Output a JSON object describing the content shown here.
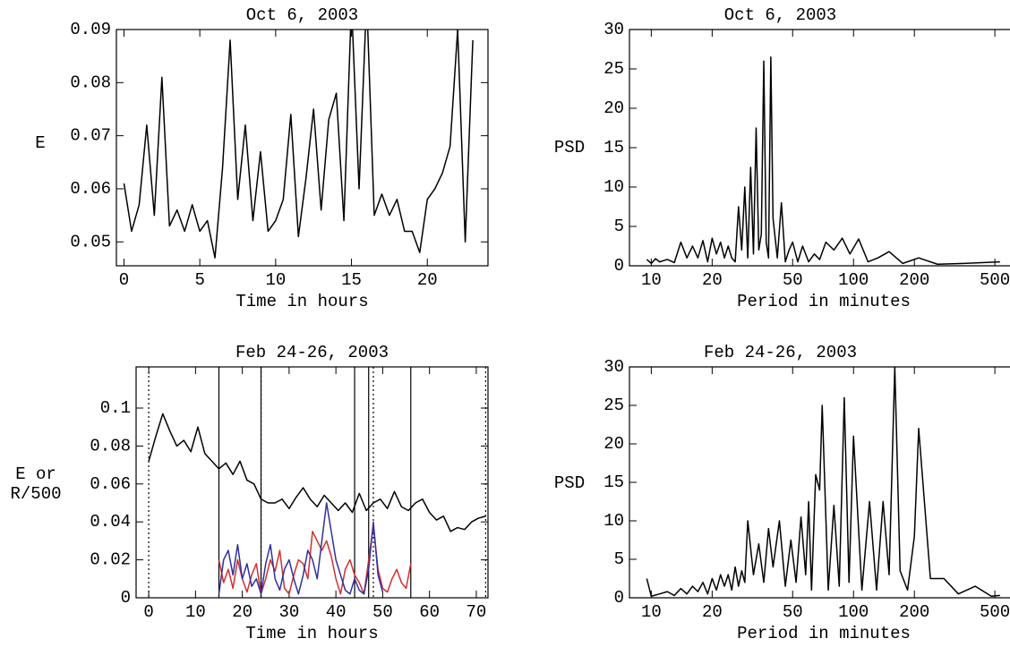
{
  "chart_data": [
    {
      "type": "line",
      "title": "Oct 6, 2003",
      "xlabel": "Time in hours",
      "ylabel": "E",
      "xlim": [
        -0.5,
        24
      ],
      "ylim": [
        0.0455,
        0.09
      ],
      "xticks": [
        0,
        5,
        10,
        15,
        20
      ],
      "yticks": [
        0.05,
        0.06,
        0.07,
        0.08,
        0.09
      ],
      "series": [
        {
          "color": "#000000",
          "x": [
            0,
            0.5,
            1,
            1.5,
            2,
            2.5,
            3,
            3.5,
            4,
            4.5,
            5,
            5.5,
            6,
            6.5,
            7,
            7.5,
            8,
            8.5,
            9,
            9.5,
            10,
            10.5,
            11,
            11.5,
            12,
            12.5,
            13,
            13.5,
            14,
            14.5,
            15,
            15.5,
            16,
            16.5,
            17,
            17.5,
            18,
            18.5,
            19,
            19.5,
            20,
            20.5,
            21,
            21.5,
            22,
            22.5,
            23
          ],
          "values": [
            0.061,
            0.052,
            0.057,
            0.072,
            0.055,
            0.081,
            0.053,
            0.056,
            0.052,
            0.057,
            0.052,
            0.054,
            0.047,
            0.064,
            0.088,
            0.058,
            0.072,
            0.054,
            0.067,
            0.052,
            0.054,
            0.058,
            0.074,
            0.051,
            0.062,
            0.075,
            0.056,
            0.073,
            0.078,
            0.054,
            0.095,
            0.06,
            0.096,
            0.055,
            0.059,
            0.055,
            0.058,
            0.052,
            0.052,
            0.048,
            0.058,
            0.06,
            0.063,
            0.068,
            0.09,
            0.05,
            0.088
          ]
        }
      ]
    },
    {
      "type": "line",
      "title": "Oct 6, 2003",
      "xlabel": "Period in minutes",
      "ylabel": "PSD",
      "xscale": "log",
      "xlim": [
        7.8,
        594
      ],
      "ylim": [
        0,
        30
      ],
      "xticks": [
        10,
        20,
        50,
        100,
        200,
        500
      ],
      "yticks": [
        0,
        5,
        10,
        15,
        20,
        25,
        30
      ],
      "series": [
        {
          "color": "#000000",
          "x": [
            9.5,
            10,
            10.5,
            11,
            12,
            13,
            14,
            15,
            16,
            17,
            18,
            19,
            20,
            21,
            22,
            23,
            24,
            25,
            26,
            27,
            28,
            29,
            30,
            31,
            32,
            33,
            34,
            35,
            36,
            37,
            38,
            39,
            40,
            42,
            44,
            46,
            48,
            50,
            53,
            56,
            60,
            64,
            68,
            73,
            80,
            88,
            96,
            106,
            118,
            132,
            150,
            175,
            210,
            260,
            350,
            530
          ],
          "values": [
            0.8,
            0.3,
            0.9,
            0.5,
            0.8,
            0.4,
            3,
            1,
            2.5,
            1,
            3.2,
            0.5,
            3.5,
            1.5,
            3,
            1,
            2.5,
            1,
            0.5,
            7.5,
            2,
            10,
            1,
            12.5,
            1.5,
            17.5,
            2,
            4,
            26,
            3,
            1,
            26.5,
            6,
            1,
            8,
            0.5,
            2,
            3,
            0.5,
            2.5,
            0.5,
            1.5,
            0.8,
            3,
            2,
            3.5,
            1.5,
            3.4,
            0.5,
            1,
            1.8,
            0.3,
            1,
            0.2,
            0.3,
            0.5
          ]
        }
      ]
    },
    {
      "type": "line",
      "title": "Feb 24-26, 2003",
      "xlabel": "Time in hours",
      "ylabel_lines": [
        "E or",
        "R/500"
      ],
      "xlim": [
        -2.7,
        72.5
      ],
      "ylim": [
        0,
        0.1217
      ],
      "xticks": [
        0,
        10,
        20,
        30,
        40,
        50,
        60,
        70
      ],
      "yticks": [
        0,
        0.02,
        0.04,
        0.06,
        0.08,
        0.1
      ],
      "vlines": [
        15,
        24,
        44,
        47,
        56
      ],
      "dotted_vlines": [
        0,
        24,
        48,
        72
      ],
      "series": [
        {
          "color": "#000000",
          "x": [
            0,
            1.5,
            3,
            4.5,
            6,
            7.5,
            9,
            10.5,
            12,
            13.5,
            15,
            16.5,
            18,
            19.5,
            21,
            22.5,
            24,
            25.5,
            27,
            28.5,
            30,
            31.5,
            33,
            34.5,
            36,
            37.5,
            39,
            40.5,
            42,
            43.5,
            45,
            46.5,
            48,
            49.5,
            51,
            52.5,
            54,
            55.5,
            57,
            58.5,
            60,
            61.5,
            63,
            64.5,
            66,
            67.5,
            69,
            70.5,
            72
          ],
          "values": [
            0.072,
            0.085,
            0.097,
            0.088,
            0.08,
            0.083,
            0.077,
            0.09,
            0.076,
            0.072,
            0.068,
            0.071,
            0.065,
            0.072,
            0.062,
            0.06,
            0.052,
            0.05,
            0.05,
            0.052,
            0.047,
            0.053,
            0.058,
            0.052,
            0.048,
            0.054,
            0.05,
            0.046,
            0.05,
            0.045,
            0.055,
            0.046,
            0.05,
            0.052,
            0.047,
            0.056,
            0.048,
            0.046,
            0.05,
            0.052,
            0.045,
            0.041,
            0.043,
            0.035,
            0.037,
            0.036,
            0.04,
            0.042,
            0.043
          ]
        },
        {
          "color": "#d03030",
          "x": [
            15,
            16,
            17,
            18,
            19,
            20,
            21,
            22,
            23,
            24,
            25,
            26,
            27,
            28,
            29,
            30,
            31,
            32,
            33,
            34,
            35,
            36,
            37,
            38,
            39,
            40,
            41,
            42,
            43,
            44,
            45,
            46,
            47,
            48,
            49,
            50,
            51,
            52,
            53,
            54,
            55,
            56
          ],
          "values": [
            0.02,
            0.008,
            0.015,
            0.005,
            0.02,
            0.01,
            0.003,
            0.012,
            0.018,
            0.002,
            0.01,
            0.02,
            0.014,
            0.025,
            0.005,
            0.002,
            0.012,
            0.02,
            0.018,
            0.01,
            0.035,
            0.03,
            0.025,
            0.03,
            0.022,
            0.01,
            0.002,
            0.015,
            0.02,
            0.012,
            0.008,
            0.002,
            0.02,
            0.038,
            0.015,
            0.005,
            0.003,
            0.01,
            0.015,
            0.008,
            0.005,
            0.018
          ]
        },
        {
          "color": "#3030a0",
          "x": [
            15,
            16,
            17,
            18,
            19,
            20,
            21,
            22,
            23,
            24,
            25,
            26,
            27,
            28,
            29,
            30,
            31,
            32,
            33,
            34,
            35,
            36,
            37,
            38,
            39,
            40,
            41,
            42,
            43,
            44,
            45,
            46,
            47,
            48,
            49,
            50,
            51,
            52,
            53,
            54,
            55,
            56
          ],
          "values": [
            0.002,
            0.02,
            0.025,
            0.012,
            0.028,
            0.01,
            0.018,
            0.006,
            0.01,
            0.002,
            0.018,
            0.028,
            0.01,
            0.004,
            0.015,
            0.02,
            0.01,
            0.002,
            0.012,
            0.025,
            0.02,
            0.01,
            0.03,
            0.05,
            0.035,
            0.02,
            0.012,
            0.004,
            0.002,
            0.01,
            0.004,
            0.002,
            0.015,
            0.04,
            0.012,
            0.003,
            null,
            null,
            null,
            null,
            null,
            null
          ]
        }
      ]
    },
    {
      "type": "line",
      "title": "Feb 24-26, 2003",
      "xlabel": "Period in minutes",
      "ylabel": "PSD",
      "xscale": "log",
      "xlim": [
        7.8,
        594
      ],
      "ylim": [
        0,
        30
      ],
      "xticks": [
        10,
        20,
        50,
        100,
        200,
        500
      ],
      "yticks": [
        0,
        5,
        10,
        15,
        20,
        25,
        30
      ],
      "series": [
        {
          "color": "#000000",
          "x": [
            9.5,
            10,
            11,
            12,
            13,
            14,
            15,
            16,
            17,
            18,
            19,
            20,
            21,
            22,
            23,
            24,
            25,
            26,
            27,
            28,
            29,
            30,
            32,
            34,
            36,
            38,
            40,
            43,
            46,
            49,
            52,
            55,
            58,
            60,
            62,
            65,
            68,
            70,
            75,
            80,
            85,
            90,
            95,
            100,
            110,
            120,
            130,
            140,
            150,
            160,
            170,
            185,
            200,
            210,
            240,
            280,
            330,
            400,
            480,
            530
          ],
          "values": [
            2.5,
            0.2,
            0.5,
            0.8,
            0.3,
            1.2,
            0.5,
            1.5,
            0.8,
            2,
            0.5,
            2.5,
            1,
            3,
            1.5,
            3,
            1,
            4,
            1.5,
            3.5,
            2,
            10,
            3,
            7,
            2,
            9,
            4,
            10,
            1.5,
            7.5,
            2,
            10.5,
            3,
            12.5,
            1,
            16,
            14,
            25,
            1,
            12,
            1.5,
            26,
            2,
            21,
            1,
            12.5,
            1,
            12.5,
            3,
            30,
            3.5,
            1,
            8,
            22,
            2.5,
            2.5,
            0.5,
            1.5,
            0.2,
            0.3
          ]
        }
      ]
    }
  ]
}
